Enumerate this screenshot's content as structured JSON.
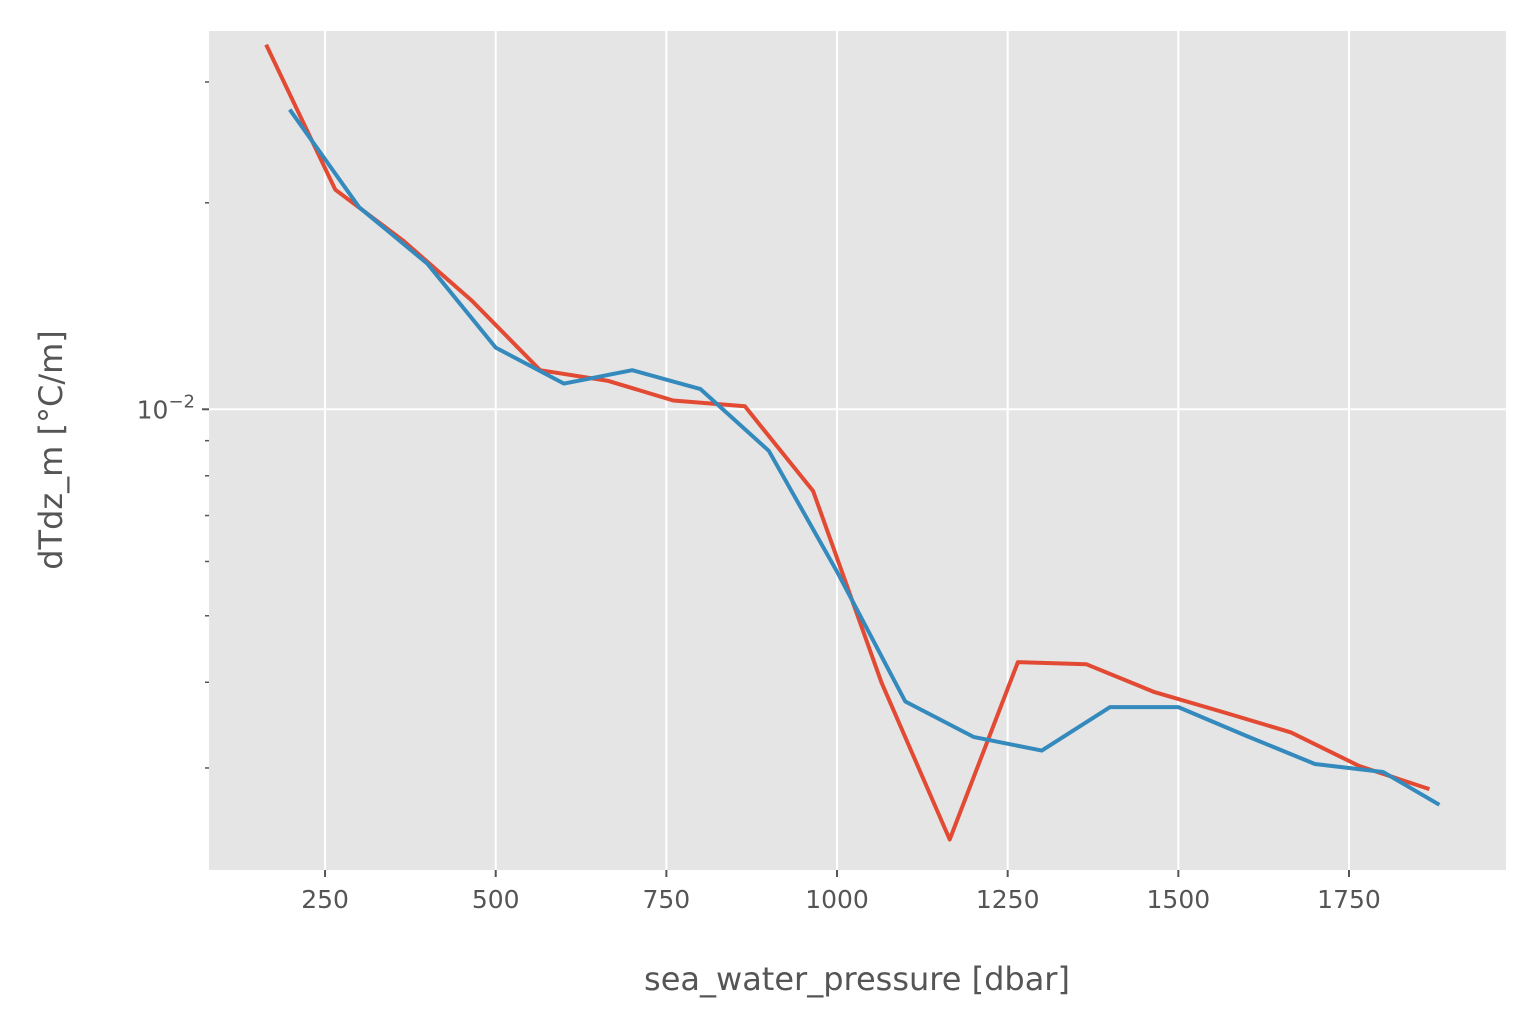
{
  "chart_data": {
    "type": "line",
    "title": "",
    "xlabel": "sea_water_pressure [dbar]",
    "ylabel": "dTdz_m [°C/m]",
    "xlim": [
      80,
      1980
    ],
    "ylim": [
      0.00213,
      0.0356
    ],
    "yscale": "log",
    "grid": true,
    "xticks": [
      250,
      500,
      750,
      1000,
      1250,
      1500,
      1750
    ],
    "xtick_labels": [
      "250",
      "500",
      "750",
      "1000",
      "1250",
      "1500",
      "1750"
    ],
    "yticks": [
      0.01
    ],
    "ytick_labels": [
      {
        "base": "10",
        "exp": "−2"
      }
    ],
    "yminor_ticks": [
      0.003,
      0.004,
      0.005,
      0.006,
      0.007,
      0.008,
      0.009,
      0.02,
      0.03
    ],
    "colors": {
      "background": "#e5e5e5",
      "grid": "#ffffff",
      "text": "#555555"
    },
    "series": [
      {
        "color": "#e24a33",
        "x": [
          165,
          265,
          365,
          465,
          565,
          665,
          760,
          865,
          965,
          1065,
          1165,
          1265,
          1365,
          1465,
          1565,
          1665,
          1765,
          1865
        ],
        "y": [
          0.0338,
          0.0209,
          0.0176,
          0.0144,
          0.0114,
          0.011,
          0.0103,
          0.0101,
          0.0076,
          0.004,
          0.00236,
          0.00428,
          0.00425,
          0.00387,
          0.00362,
          0.00338,
          0.00302,
          0.0028
        ]
      },
      {
        "color": "#348abd",
        "x": [
          200,
          300,
          400,
          500,
          600,
          700,
          800,
          900,
          1000,
          1100,
          1200,
          1300,
          1400,
          1500,
          1600,
          1700,
          1800,
          1880
        ],
        "y": [
          0.0272,
          0.0197,
          0.0163,
          0.0123,
          0.0109,
          0.0114,
          0.0107,
          0.0087,
          0.0058,
          0.00375,
          0.00333,
          0.00318,
          0.00368,
          0.00368,
          0.00334,
          0.00304,
          0.00296,
          0.00266
        ]
      }
    ]
  }
}
